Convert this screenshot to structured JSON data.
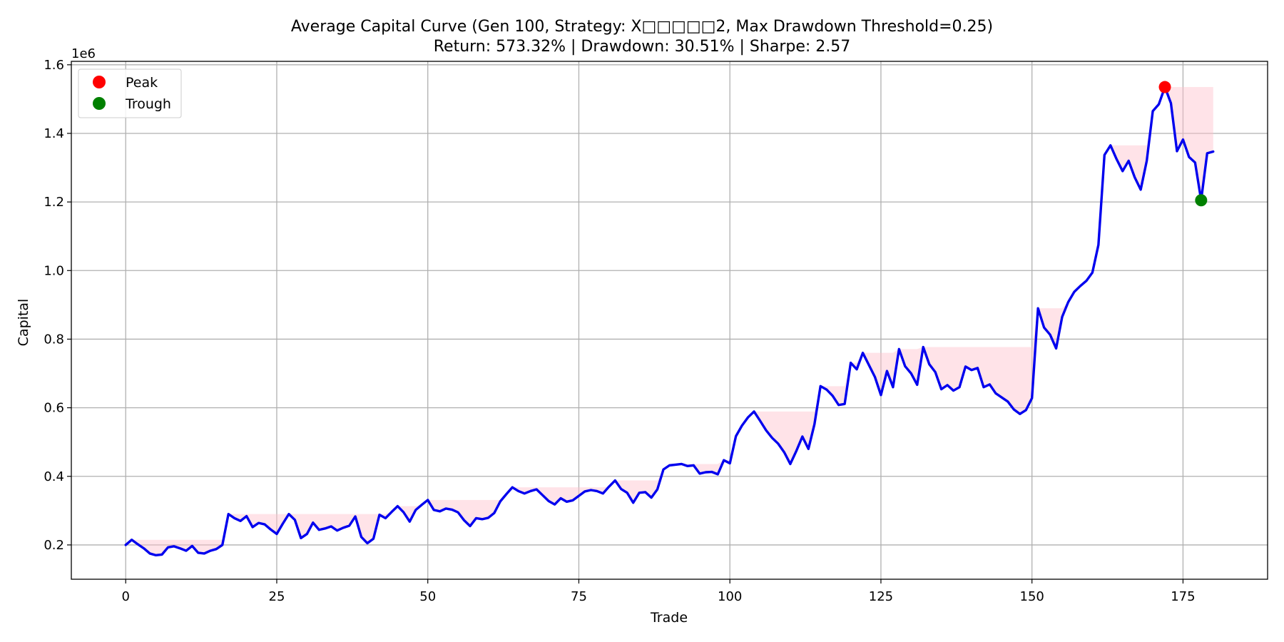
{
  "chart_data": {
    "type": "line",
    "title": "Average Capital Curve (Gen 100, Strategy: X□□□□□2, Max Drawdown Threshold=0.25)",
    "subtitle": "Return: 573.32% | Drawdown: 30.51% | Sharpe: 2.57",
    "xlabel": "Trade",
    "ylabel": "Capital",
    "y_offset_label": "1e6",
    "xlim": [
      -9,
      189
    ],
    "ylim": [
      0.1,
      1.61
    ],
    "x_ticks": [
      0,
      25,
      50,
      75,
      100,
      125,
      150,
      175
    ],
    "x_tick_labels": [
      "0",
      "25",
      "50",
      "75",
      "100",
      "125",
      "150",
      "175"
    ],
    "y_ticks": [
      0.2,
      0.4,
      0.6,
      0.8,
      1.0,
      1.2,
      1.4,
      1.6
    ],
    "y_tick_labels": [
      "0.2",
      "0.4",
      "0.6",
      "0.8",
      "1.0",
      "1.2",
      "1.4",
      "1.6"
    ],
    "grid": true,
    "legend_position": "top-left",
    "series": [
      {
        "name": "",
        "color": "#0000ee",
        "values": [
          0.2,
          0.215,
          0.202,
          0.19,
          0.175,
          0.17,
          0.172,
          0.193,
          0.196,
          0.19,
          0.183,
          0.197,
          0.177,
          0.175,
          0.183,
          0.188,
          0.2,
          0.29,
          0.278,
          0.27,
          0.284,
          0.252,
          0.264,
          0.26,
          0.245,
          0.232,
          0.262,
          0.29,
          0.273,
          0.22,
          0.232,
          0.265,
          0.244,
          0.248,
          0.254,
          0.242,
          0.25,
          0.256,
          0.283,
          0.223,
          0.205,
          0.218,
          0.288,
          0.278,
          0.296,
          0.313,
          0.295,
          0.268,
          0.302,
          0.317,
          0.331,
          0.302,
          0.298,
          0.306,
          0.303,
          0.295,
          0.272,
          0.255,
          0.278,
          0.275,
          0.279,
          0.293,
          0.327,
          0.348,
          0.368,
          0.357,
          0.35,
          0.357,
          0.362,
          0.345,
          0.328,
          0.318,
          0.336,
          0.326,
          0.33,
          0.343,
          0.356,
          0.36,
          0.357,
          0.35,
          0.37,
          0.388,
          0.363,
          0.352,
          0.323,
          0.352,
          0.354,
          0.338,
          0.362,
          0.42,
          0.432,
          0.434,
          0.436,
          0.43,
          0.432,
          0.408,
          0.412,
          0.413,
          0.406,
          0.447,
          0.438,
          0.517,
          0.548,
          0.572,
          0.589,
          0.562,
          0.534,
          0.512,
          0.495,
          0.47,
          0.436,
          0.474,
          0.516,
          0.48,
          0.552,
          0.663,
          0.653,
          0.635,
          0.608,
          0.611,
          0.731,
          0.712,
          0.76,
          0.725,
          0.69,
          0.637,
          0.707,
          0.66,
          0.771,
          0.721,
          0.7,
          0.667,
          0.777,
          0.727,
          0.704,
          0.654,
          0.666,
          0.65,
          0.66,
          0.72,
          0.71,
          0.716,
          0.66,
          0.668,
          0.642,
          0.63,
          0.618,
          0.595,
          0.582,
          0.593,
          0.628,
          0.89,
          0.834,
          0.813,
          0.773,
          0.865,
          0.908,
          0.938,
          0.955,
          0.97,
          0.994,
          1.075,
          1.337,
          1.365,
          1.325,
          1.29,
          1.32,
          1.272,
          1.236,
          1.32,
          1.465,
          1.485,
          1.535,
          1.488,
          1.348,
          1.382,
          1.331,
          1.315,
          1.205,
          1.342,
          1.347
        ]
      }
    ],
    "markers": [
      {
        "name": "Peak",
        "x": 172,
        "y": 1.535,
        "color": "#ff0000"
      },
      {
        "name": "Trough",
        "x": 178,
        "y": 1.205,
        "color": "#008000"
      }
    ],
    "drawdown_fill_color": "#ffc0cb",
    "legend": [
      {
        "label": "Peak",
        "color": "#ff0000"
      },
      {
        "label": "Trough",
        "color": "#008000"
      }
    ]
  }
}
